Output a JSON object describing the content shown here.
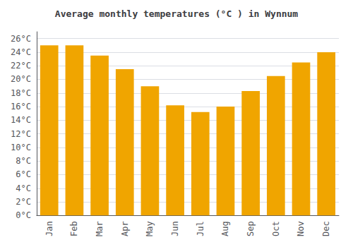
{
  "chart_data": {
    "type": "bar",
    "title": "Average monthly temperatures (°C ) in Wynnum",
    "categories": [
      "Jan",
      "Feb",
      "Mar",
      "Apr",
      "May",
      "Jun",
      "Jul",
      "Aug",
      "Sep",
      "Oct",
      "Nov",
      "Dec"
    ],
    "values": [
      25.0,
      25.0,
      23.5,
      21.5,
      19.0,
      16.2,
      15.2,
      16.0,
      18.3,
      20.5,
      22.5,
      24.0
    ],
    "color": "#F0A500",
    "ylim": [
      0,
      27
    ],
    "yticks": [
      {
        "value": 0,
        "label": "0°C"
      },
      {
        "value": 2,
        "label": "2°C"
      },
      {
        "value": 4,
        "label": "4°C"
      },
      {
        "value": 6,
        "label": "6°C"
      },
      {
        "value": 8,
        "label": "8°C"
      },
      {
        "value": 10,
        "label": "10°C"
      },
      {
        "value": 12,
        "label": "12°C"
      },
      {
        "value": 14,
        "label": "14°C"
      },
      {
        "value": 16,
        "label": "16°C"
      },
      {
        "value": 18,
        "label": "18°C"
      },
      {
        "value": 20,
        "label": "20°C"
      },
      {
        "value": 22,
        "label": "22°C"
      },
      {
        "value": 24,
        "label": "24°C"
      },
      {
        "value": 26,
        "label": "26°C"
      }
    ],
    "grid": true
  }
}
